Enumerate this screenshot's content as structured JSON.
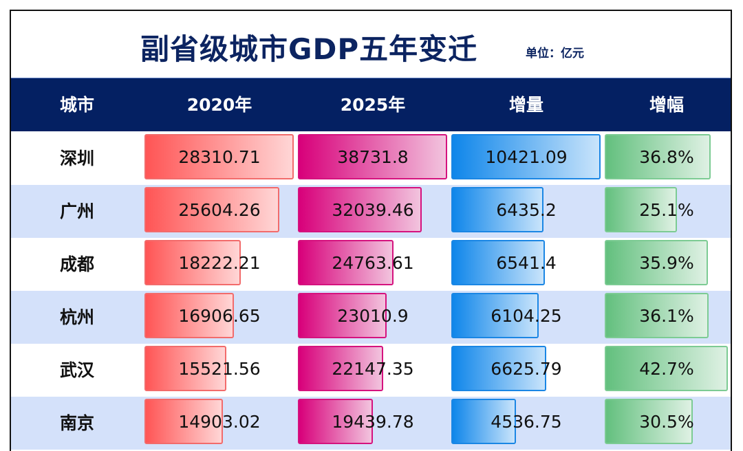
{
  "title": "副省级城市GDP五年变迁",
  "unit": "单位：亿元",
  "colors": {
    "title": "#0c2461",
    "header_bg": "#042062",
    "row_alt_bg": "#d4e1fa",
    "bar_2020": "#ff5555",
    "bar_2025": "#d8007a",
    "bar_increase": "#0f86ea",
    "bar_growth": "#63c07e"
  },
  "header": {
    "city": "城市",
    "y2020": "2020年",
    "y2025": "2025年",
    "increase": "增量",
    "growth": "增幅"
  },
  "rows": [
    {
      "city": "深圳",
      "y2020": "28310.71",
      "y2025": "38731.8",
      "increase": "10421.09",
      "growth": "36.8%"
    },
    {
      "city": "广州",
      "y2020": "25604.26",
      "y2025": "32039.46",
      "increase": "6435.2",
      "growth": "25.1%"
    },
    {
      "city": "成都",
      "y2020": "18222.21",
      "y2025": "24763.61",
      "increase": "6541.4",
      "growth": "35.9%"
    },
    {
      "city": "杭州",
      "y2020": "16906.65",
      "y2025": "23010.9",
      "increase": "6104.25",
      "growth": "36.1%"
    },
    {
      "city": "武汉",
      "y2020": "15521.56",
      "y2025": "22147.35",
      "increase": "6625.79",
      "growth": "42.7%"
    },
    {
      "city": "南京",
      "y2020": "14903.02",
      "y2025": "19439.78",
      "increase": "4536.75",
      "growth": "30.5%"
    }
  ],
  "chart_data": {
    "type": "table",
    "title": "副省级城市GDP五年变迁",
    "subtitle": "单位：亿元",
    "columns": [
      "城市",
      "2020年",
      "2025年",
      "增量",
      "增幅"
    ],
    "categories": [
      "深圳",
      "广州",
      "成都",
      "杭州",
      "武汉",
      "南京"
    ],
    "series": [
      {
        "name": "2020年",
        "values": [
          28310.71,
          25604.26,
          18222.21,
          16906.65,
          15521.56,
          14903.02
        ]
      },
      {
        "name": "2025年",
        "values": [
          38731.8,
          32039.46,
          24763.61,
          23010.9,
          22147.35,
          19439.78
        ]
      },
      {
        "name": "增量",
        "values": [
          10421.09,
          6435.2,
          6541.4,
          6104.25,
          6625.79,
          4536.75
        ]
      },
      {
        "name": "增幅",
        "values": [
          36.8,
          25.1,
          35.9,
          36.1,
          42.7,
          30.5
        ]
      }
    ],
    "notes": "Data bars in each cell scaled relative to the column maximum; last row (南京) is partially cut off at the bottom edge."
  }
}
